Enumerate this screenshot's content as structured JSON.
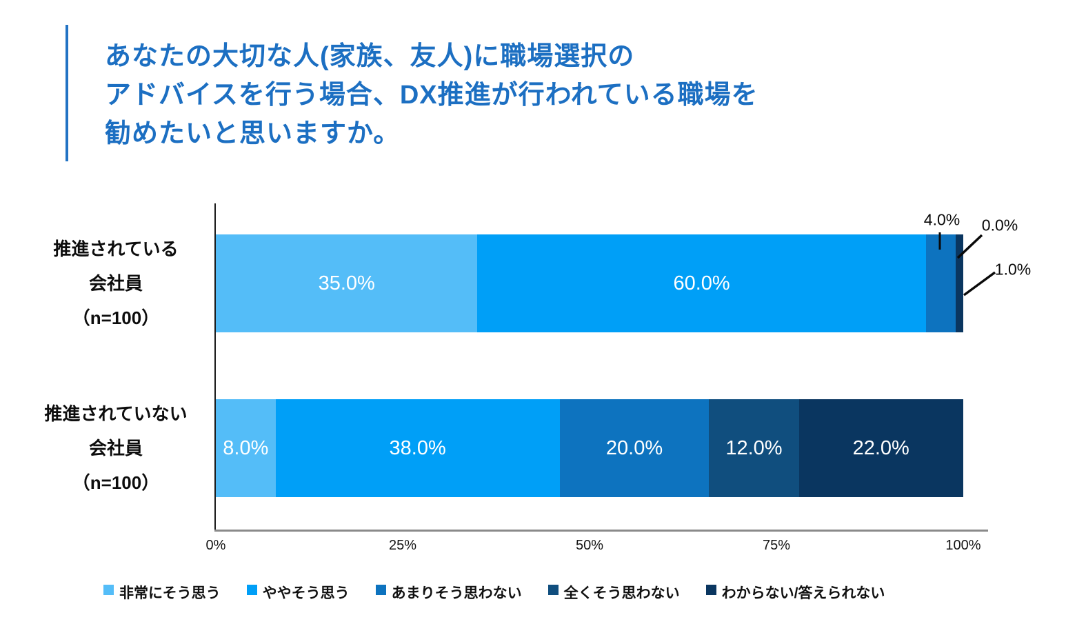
{
  "title": {
    "lines": [
      "あなたの大切な人(家族、友人)に職場選択の",
      "アドバイスを行う場合、DX推進が行われている職場を",
      "勧めたいと思いますか。"
    ],
    "color": "#1c6fc2",
    "accent_color": "#2273c4"
  },
  "chart_data": {
    "type": "bar",
    "orientation": "horizontal",
    "stacked": true,
    "unit": "%",
    "xlim": [
      0,
      100
    ],
    "x_ticks": [
      "0%",
      "25%",
      "50%",
      "75%",
      "100%"
    ],
    "grid": false,
    "legend_position": "bottom",
    "categories": [
      [
        "推進されている",
        "会社員",
        "（n=100）"
      ],
      [
        "推進されていない",
        "会社員",
        "（n=100）"
      ]
    ],
    "series": [
      {
        "name": "非常にそう思う",
        "color": "#54BDF8",
        "values": [
          35.0,
          8.0
        ],
        "labels": [
          "35.0%",
          "8.0%"
        ]
      },
      {
        "name": "ややそう思う",
        "color": "#009FF7",
        "values": [
          60.0,
          38.0
        ],
        "labels": [
          "60.0%",
          "38.0%"
        ]
      },
      {
        "name": "あまりそう思わない",
        "color": "#0D73BF",
        "values": [
          4.0,
          20.0
        ],
        "labels": [
          "4.0%",
          "20.0%"
        ]
      },
      {
        "name": "全くそう思わない",
        "color": "#104E7E",
        "values": [
          0.0,
          12.0
        ],
        "labels": [
          "0.0%",
          "12.0%"
        ]
      },
      {
        "name": "わからない/答えられない",
        "color": "#0A3660",
        "values": [
          1.0,
          22.0
        ],
        "labels": [
          "1.0%",
          "22.0%"
        ]
      }
    ],
    "annotations": [
      {
        "bar": 0,
        "series": "あまりそう思わない",
        "text": "4.0%"
      },
      {
        "bar": 0,
        "series": "全くそう思わない",
        "text": "0.0%"
      },
      {
        "bar": 0,
        "series": "わからない/答えられない",
        "text": "1.0%"
      }
    ]
  }
}
